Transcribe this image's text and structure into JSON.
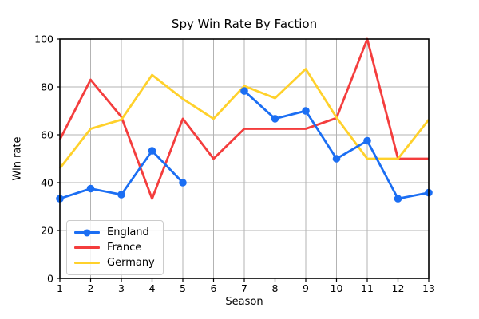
{
  "chart_data": {
    "type": "line",
    "title": "Spy Win Rate By Faction",
    "xlabel": "Season",
    "ylabel": "Win rate",
    "x": [
      1,
      2,
      3,
      4,
      5,
      6,
      7,
      8,
      9,
      10,
      11,
      12,
      13
    ],
    "xlim": [
      1,
      13
    ],
    "ylim": [
      0,
      100
    ],
    "yticks": [
      0,
      20,
      40,
      60,
      80,
      100
    ],
    "grid": true,
    "grid_color": "#b3b3b3",
    "legend_position": "lower-left",
    "series": [
      {
        "name": "England",
        "color": "#1b6ef3",
        "marker": "circle",
        "values": [
          33.3,
          37.5,
          35,
          53.3,
          40,
          null,
          78.3,
          66.7,
          70,
          50,
          57.5,
          33.3,
          35.8
        ]
      },
      {
        "name": "France",
        "color": "#f43d3d",
        "marker": null,
        "values": [
          58,
          83,
          67.5,
          33.3,
          66.7,
          50,
          62.5,
          62.5,
          62.5,
          67,
          100,
          50,
          50
        ]
      },
      {
        "name": "Germany",
        "color": "#ffd12b",
        "marker": null,
        "values": [
          46,
          62.5,
          66.3,
          85,
          75,
          66.7,
          80.4,
          75.3,
          87.5,
          67.2,
          50,
          50,
          66.3
        ]
      }
    ]
  }
}
